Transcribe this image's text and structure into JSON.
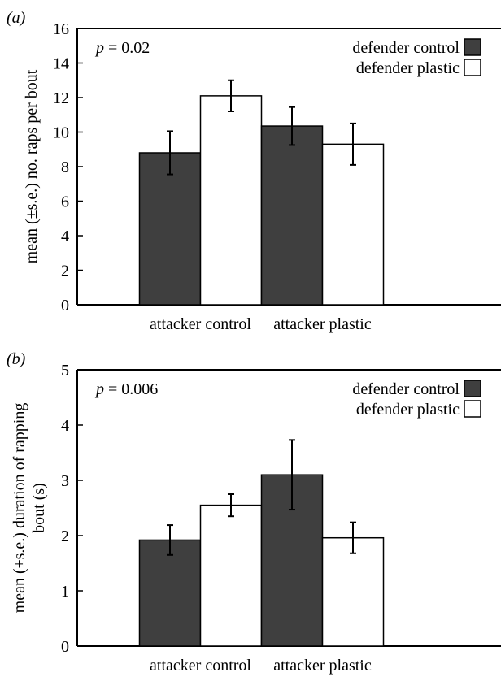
{
  "chart_data": [
    {
      "type": "bar",
      "panel_label": "(a)",
      "annotation": "p = 0.02",
      "ylabel": "mean (±s.e.) no. raps per bout",
      "ylim": [
        0,
        16
      ],
      "yticks": [
        0,
        2,
        4,
        6,
        8,
        10,
        12,
        14,
        16
      ],
      "categories": [
        "attacker control",
        "attacker plastic"
      ],
      "series": [
        {
          "name": "defender control",
          "color": "#3f3f3f",
          "values": [
            8.8,
            10.35
          ],
          "se": [
            1.25,
            1.1
          ]
        },
        {
          "name": "defender plastic",
          "color": "#ffffff",
          "values": [
            12.1,
            9.3
          ],
          "se": [
            0.9,
            1.2
          ]
        }
      ],
      "legend": "top-right"
    },
    {
      "type": "bar",
      "panel_label": "(b)",
      "annotation": "p = 0.006",
      "ylabel_lines": [
        "mean (±s.e.) duration of rapping",
        "bout (s)"
      ],
      "ylim": [
        0,
        5
      ],
      "yticks": [
        0,
        1,
        2,
        3,
        4,
        5
      ],
      "categories": [
        "attacker control",
        "attacker plastic"
      ],
      "series": [
        {
          "name": "defender control",
          "color": "#3f3f3f",
          "values": [
            1.92,
            3.1
          ],
          "se": [
            0.27,
            0.63
          ]
        },
        {
          "name": "defender plastic",
          "color": "#ffffff",
          "values": [
            2.55,
            1.96
          ],
          "se": [
            0.2,
            0.28
          ]
        }
      ],
      "legend": "top-right"
    }
  ]
}
